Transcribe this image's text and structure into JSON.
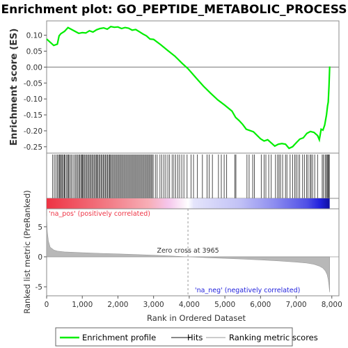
{
  "chart_data": {
    "type": "line",
    "title": "Enrichment plot: GO_PEPTIDE_METABOLIC_PROCESS",
    "es_panel": {
      "ylabel": "Enrichment score (ES)",
      "ylim": [
        -0.27,
        0.145
      ],
      "yticks": [
        0.1,
        0.05,
        0.0,
        -0.05,
        -0.1,
        -0.15,
        -0.2,
        -0.25
      ],
      "ytick_labels": [
        "0.10",
        "0.05",
        "0.00",
        "-0.05",
        "-0.10",
        "-0.15",
        "-0.20",
        "-0.25"
      ],
      "grid": false,
      "series": [
        {
          "name": "Enrichment profile",
          "color": "#00ee00",
          "x": [
            0,
            100,
            200,
            300,
            350,
            400,
            500,
            600,
            700,
            800,
            900,
            1000,
            1100,
            1200,
            1300,
            1400,
            1500,
            1600,
            1700,
            1800,
            1900,
            2000,
            2100,
            2200,
            2300,
            2400,
            2500,
            2600,
            2700,
            2800,
            2900,
            3000,
            3200,
            3400,
            3600,
            3800,
            3965,
            4200,
            4400,
            4600,
            4800,
            5000,
            5200,
            5300,
            5400,
            5500,
            5600,
            5800,
            6000,
            6100,
            6200,
            6300,
            6400,
            6500,
            6600,
            6700,
            6800,
            6900,
            7000,
            7100,
            7200,
            7300,
            7400,
            7500,
            7600,
            7650,
            7700,
            7750,
            7800,
            7850,
            7880,
            7900,
            7920,
            7940
          ],
          "values": [
            0.088,
            0.078,
            0.068,
            0.072,
            0.098,
            0.105,
            0.112,
            0.124,
            0.118,
            0.112,
            0.106,
            0.108,
            0.107,
            0.114,
            0.11,
            0.117,
            0.121,
            0.123,
            0.119,
            0.127,
            0.125,
            0.126,
            0.121,
            0.124,
            0.122,
            0.116,
            0.118,
            0.111,
            0.104,
            0.098,
            0.088,
            0.087,
            0.07,
            0.052,
            0.034,
            0.012,
            -0.005,
            -0.035,
            -0.06,
            -0.082,
            -0.103,
            -0.12,
            -0.138,
            -0.158,
            -0.168,
            -0.18,
            -0.195,
            -0.203,
            -0.225,
            -0.232,
            -0.228,
            -0.238,
            -0.248,
            -0.242,
            -0.24,
            -0.242,
            -0.255,
            -0.25,
            -0.238,
            -0.226,
            -0.222,
            -0.208,
            -0.202,
            -0.205,
            -0.215,
            -0.228,
            -0.195,
            -0.198,
            -0.182,
            -0.15,
            -0.122,
            -0.11,
            -0.06,
            0.002
          ]
        }
      ]
    },
    "hits_panel": {
      "legend_label": "Hits",
      "hit_ranks": [
        170,
        215,
        260,
        300,
        335,
        360,
        390,
        410,
        440,
        470,
        500,
        520,
        560,
        590,
        610,
        640,
        680,
        710,
        760,
        800,
        830,
        870,
        900,
        930,
        960,
        990,
        1010,
        1030,
        1060,
        1090,
        1120,
        1150,
        1180,
        1210,
        1240,
        1270,
        1300,
        1330,
        1360,
        1390,
        1410,
        1440,
        1470,
        1500,
        1530,
        1560,
        1590,
        1620,
        1650,
        1680,
        1710,
        1740,
        1770,
        1790,
        1820,
        1850,
        1880,
        1910,
        1940,
        1970,
        2000,
        2030,
        2060,
        2090,
        2120,
        2150,
        2180,
        2210,
        2240,
        2270,
        2300,
        2330,
        2360,
        2390,
        2420,
        2450,
        2480,
        2510,
        2540,
        2570,
        2600,
        2630,
        2660,
        2690,
        2720,
        2750,
        2780,
        2810,
        2840,
        2870,
        2900,
        2930,
        2960,
        2990,
        3050,
        3100,
        3180,
        3230,
        3290,
        3340,
        3400,
        3450,
        3520,
        3570,
        3620,
        3680,
        3730,
        3790,
        3850,
        3940,
        4050,
        4120,
        4230,
        4370,
        4500,
        4560,
        4650,
        4820,
        4900,
        4980,
        5050,
        5280,
        5310,
        5620,
        5680,
        5780,
        5830,
        6020,
        6100,
        6150,
        6230,
        6300,
        6420,
        6480,
        6520,
        6560,
        6620,
        6700,
        6740,
        6830,
        6900,
        6960,
        7000,
        7050,
        7100,
        7180,
        7230,
        7290,
        7330,
        7390,
        7420,
        7460,
        7520,
        7600,
        7730,
        7760,
        7810,
        7840,
        7870,
        7890,
        7910,
        7930
      ]
    },
    "heatmap_bar": {
      "colors_note": "red (positive) to white at zero cross to blue (negative)",
      "pos_color": "#ee3344",
      "neg_color": "#2222dd"
    },
    "ranked_panel": {
      "ylabel": "Ranked list metric (PreRanked)",
      "xlabel": "Rank in Ordered Dataset",
      "ylim": [
        -6.5,
        8
      ],
      "yticks": [
        5,
        0,
        -5
      ],
      "ytick_labels": [
        "5",
        "0",
        "-5"
      ],
      "xlim": [
        0,
        8200
      ],
      "xticks": [
        0,
        1000,
        2000,
        3000,
        4000,
        5000,
        6000,
        7000,
        8000
      ],
      "xtick_labels": [
        "0",
        "1,000",
        "2,000",
        "3,000",
        "4,000",
        "5,000",
        "6,000",
        "7,000",
        "8,000"
      ],
      "legend_label": "Ranking metric scores",
      "fill_color": "#b0b0b0",
      "profile_x": [
        0,
        20,
        50,
        100,
        200,
        300,
        500,
        1000,
        1500,
        2000,
        2500,
        3000,
        3500,
        3965,
        4500,
        5000,
        5500,
        6000,
        6500,
        7000,
        7300,
        7500,
        7650,
        7750,
        7820,
        7870,
        7900,
        7920,
        7940
      ],
      "profile_y": [
        6.8,
        4.2,
        2.6,
        1.6,
        1.15,
        0.95,
        0.82,
        0.68,
        0.58,
        0.48,
        0.38,
        0.26,
        0.14,
        0.0,
        -0.14,
        -0.26,
        -0.38,
        -0.52,
        -0.68,
        -0.88,
        -1.05,
        -1.25,
        -1.55,
        -1.9,
        -2.35,
        -3.0,
        -3.8,
        -4.8,
        -5.9
      ],
      "zero_cross_rank": 3965,
      "zero_cross_label": "Zero cross at 3965",
      "pos_label": "'na_pos' (positively correlated)",
      "neg_label": "'na_neg' (negatively correlated)",
      "pos_label_color": "#ee3344",
      "neg_label_color": "#2222dd"
    },
    "legend": {
      "placement": "bottom",
      "items": [
        {
          "label": "Enrichment profile",
          "color": "#00ee00",
          "style": "line"
        },
        {
          "label": "Hits",
          "color": "#888888",
          "style": "line"
        },
        {
          "label": "Ranking metric scores",
          "color": "#cccccc",
          "style": "line"
        }
      ]
    }
  }
}
